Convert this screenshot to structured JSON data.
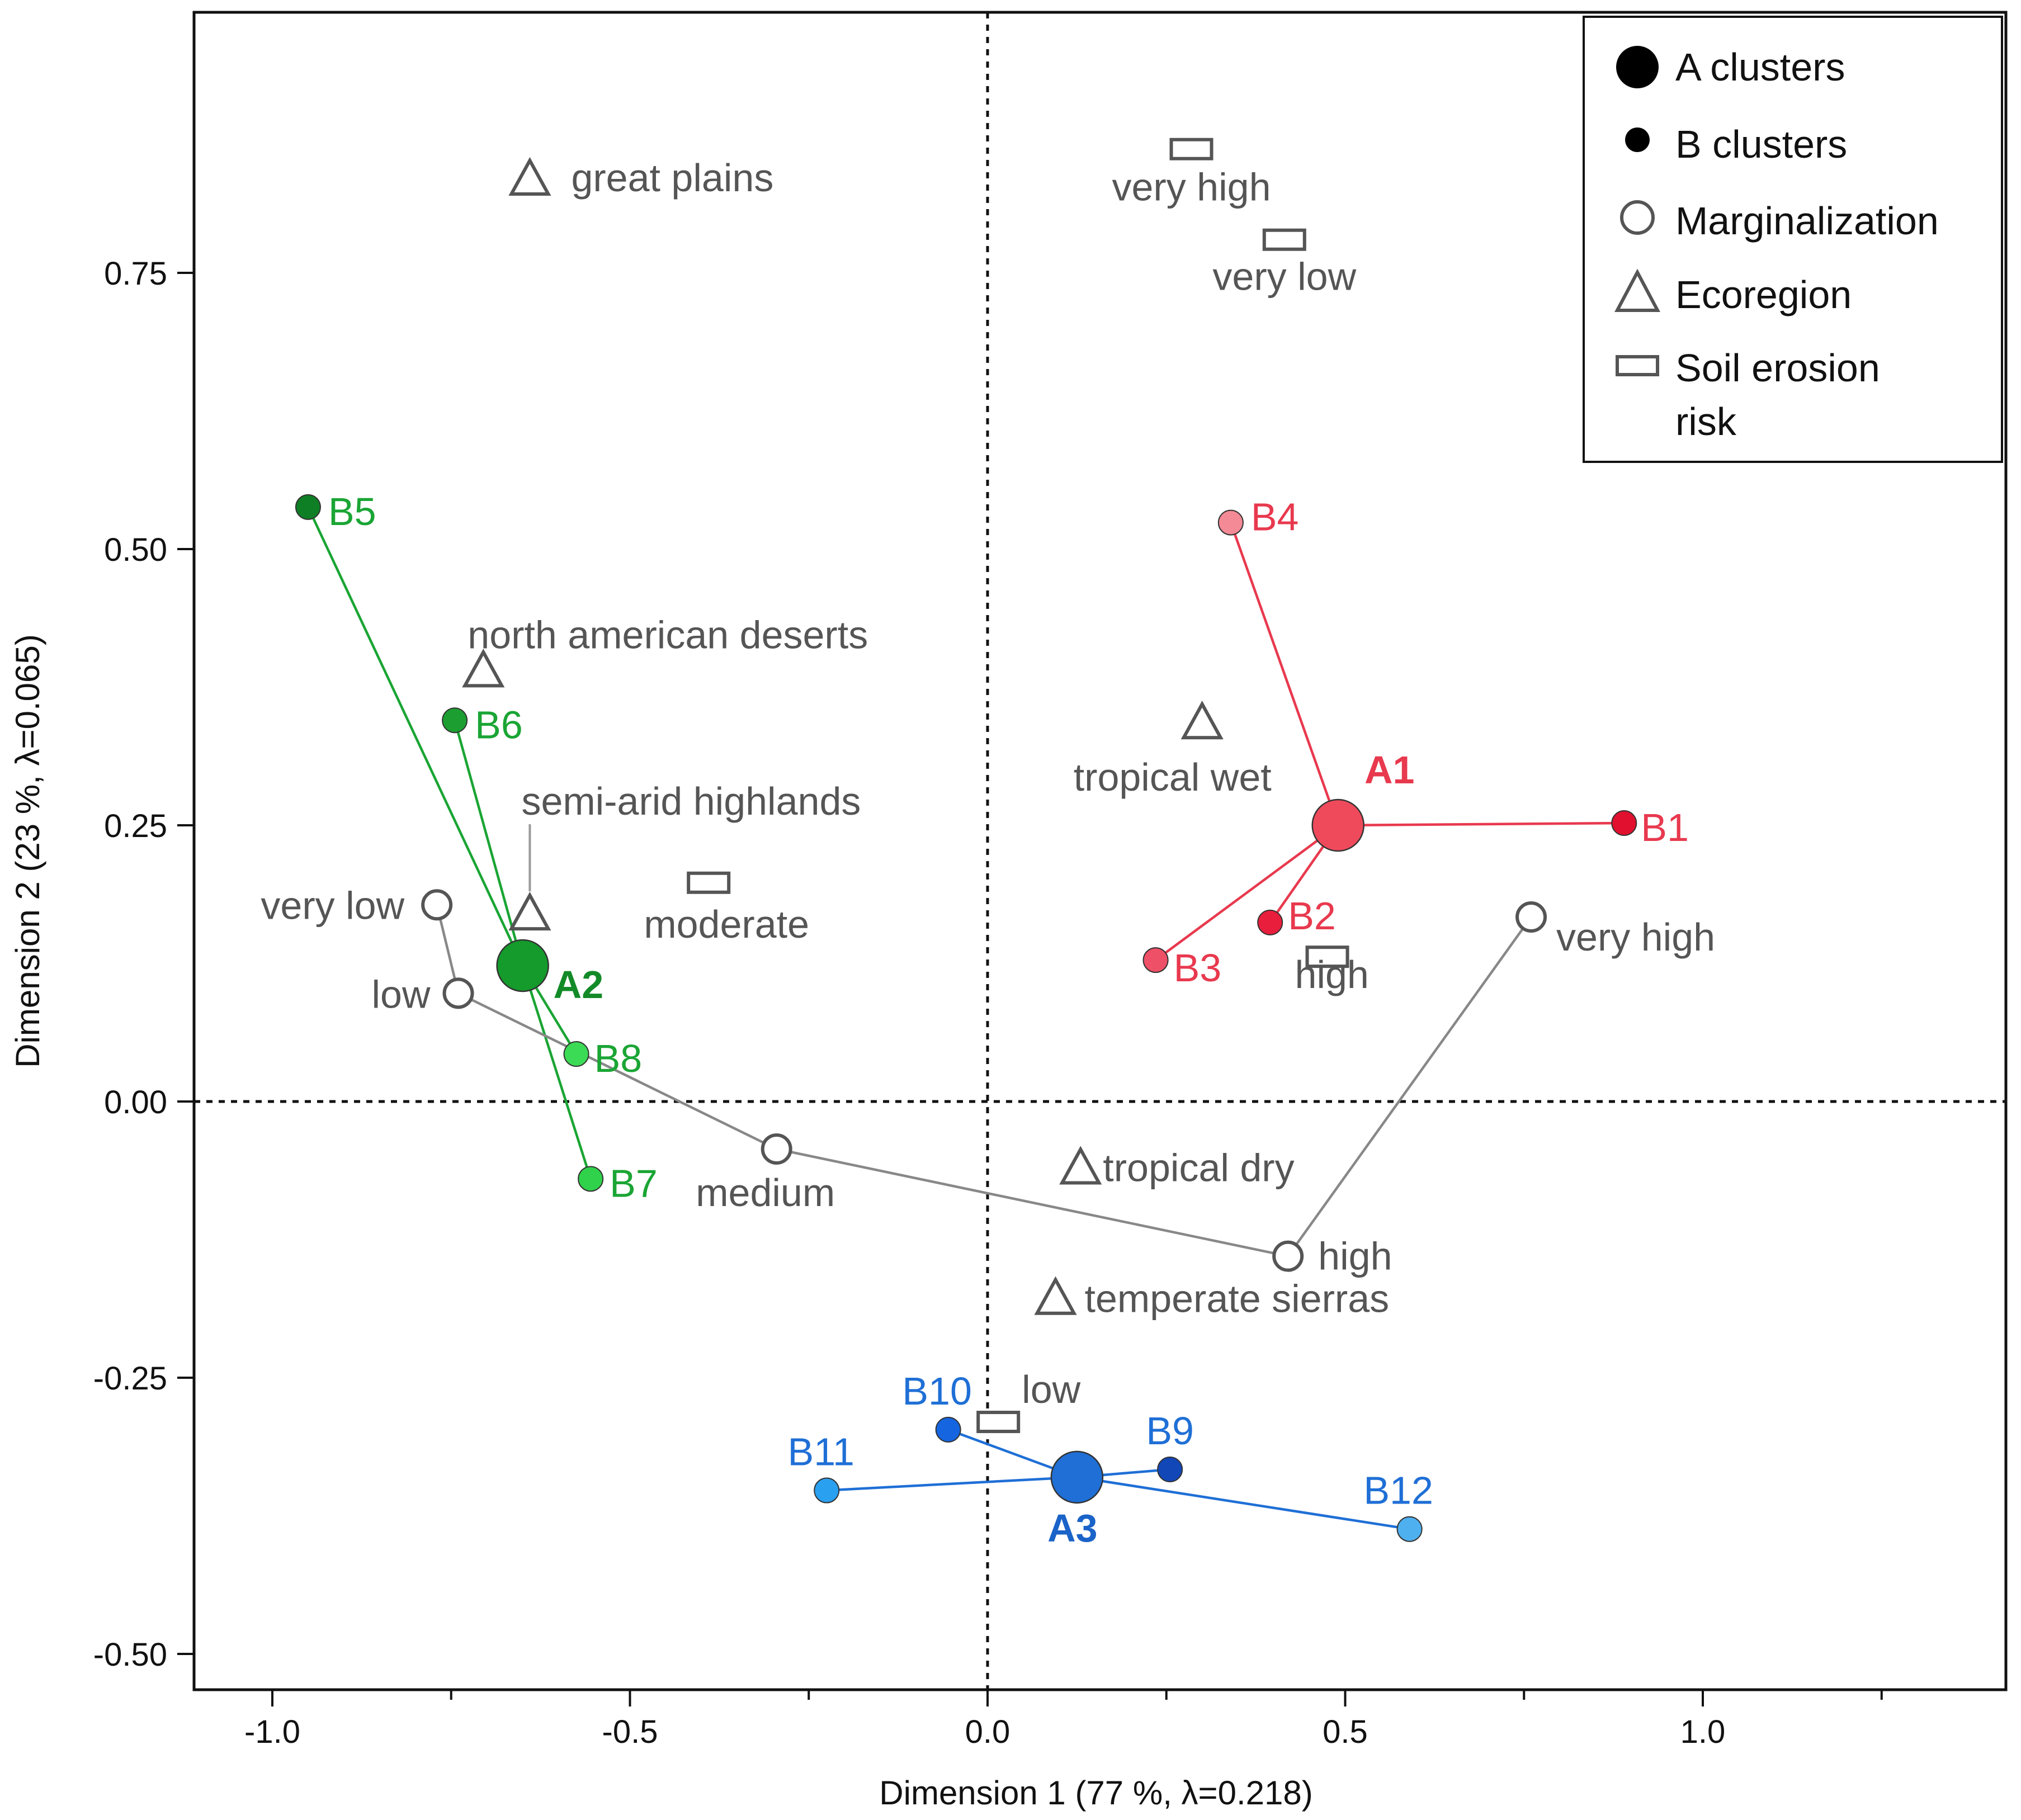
{
  "chart_data": {
    "type": "scatter",
    "title": "",
    "xlabel": "Dimension 1  (77 %, λ=0.218)",
    "ylabel": "Dimension 2  (23 %, λ=0.065)",
    "xlim": [
      -1.1,
      1.4
    ],
    "ylim": [
      -0.53,
      1.0
    ],
    "x_ticks": [
      -1.0,
      -0.5,
      0.0,
      0.5,
      1.0
    ],
    "x_tick_labels": [
      "-1.0",
      "-0.5",
      "0.0",
      "0.5",
      "1.0"
    ],
    "y_ticks": [
      -0.5,
      -0.25,
      0.0,
      0.25,
      0.5,
      0.75
    ],
    "y_tick_labels": [
      "-0.50",
      "-0.25",
      "0.00",
      "0.25",
      "0.50",
      "0.75"
    ],
    "grid": false,
    "reference_lines": "dashed lines at x = 0 and y = 0",
    "legend_position": "top-right",
    "legend": [
      {
        "label": "A clusters",
        "marker": "large-filled-circle"
      },
      {
        "label": "B clusters",
        "marker": "small-filled-circle"
      },
      {
        "label": "Marginalization",
        "marker": "open-circle"
      },
      {
        "label": "Ecoregion",
        "marker": "open-triangle"
      },
      {
        "label": "Soil erosion risk",
        "marker": "open-rectangle"
      }
    ],
    "colors": {
      "group_A1": "#e8394e",
      "group_A2": "#1aa534",
      "group_A3": "#1f6fd6",
      "marginalization_line": "#888888",
      "variable_marker": "#555555",
      "variable_text": "#555555"
    },
    "a_clusters": [
      {
        "label": "A1",
        "x": 0.49,
        "y": 0.25,
        "color": "#ef4a5c",
        "text_color": "#e8394e"
      },
      {
        "label": "A2",
        "x": -0.65,
        "y": 0.123,
        "color": "#159a2c",
        "text_color": "#138a28"
      },
      {
        "label": "A3",
        "x": 0.125,
        "y": -0.34,
        "color": "#1f6fd6",
        "text_color": "#1a63c8"
      }
    ],
    "b_clusters": [
      {
        "label": "B1",
        "x": 0.89,
        "y": 0.252,
        "parent": "A1",
        "color": "#e0102e",
        "text_color": "#e8394e"
      },
      {
        "label": "B2",
        "x": 0.395,
        "y": 0.162,
        "parent": "A1",
        "color": "#e81e3c",
        "text_color": "#e8394e"
      },
      {
        "label": "B3",
        "x": 0.235,
        "y": 0.128,
        "parent": "A1",
        "color": "#ee5067",
        "text_color": "#e8394e"
      },
      {
        "label": "B4",
        "x": 0.34,
        "y": 0.524,
        "parent": "A1",
        "color": "#f48a96",
        "text_color": "#e8394e"
      },
      {
        "label": "B5",
        "x": -0.95,
        "y": 0.538,
        "parent": "A2",
        "color": "#0f7f25",
        "text_color": "#1aa534"
      },
      {
        "label": "B6",
        "x": -0.745,
        "y": 0.345,
        "parent": "A2",
        "color": "#1c9e31",
        "text_color": "#1aa534"
      },
      {
        "label": "B7",
        "x": -0.555,
        "y": -0.07,
        "parent": "A2",
        "color": "#2fd24a",
        "text_color": "#1aa534"
      },
      {
        "label": "B8",
        "x": -0.575,
        "y": 0.043,
        "parent": "A2",
        "color": "#3cdb55",
        "text_color": "#1aa534"
      },
      {
        "label": "B9",
        "x": 0.255,
        "y": -0.333,
        "parent": "A3",
        "color": "#1247b8",
        "text_color": "#1f6fd6"
      },
      {
        "label": "B10",
        "x": -0.055,
        "y": -0.297,
        "parent": "A3",
        "color": "#1565e0",
        "text_color": "#1f6fd6"
      },
      {
        "label": "B11",
        "x": -0.225,
        "y": -0.352,
        "parent": "A3",
        "color": "#2aa0f0",
        "text_color": "#1f6fd6"
      },
      {
        "label": "B12",
        "x": 0.59,
        "y": -0.387,
        "parent": "A3",
        "color": "#4fb0f0",
        "text_color": "#1f6fd6"
      }
    ],
    "marginalization": [
      {
        "label": "very low",
        "x": -0.77,
        "y": 0.178
      },
      {
        "label": "low",
        "x": -0.74,
        "y": 0.098
      },
      {
        "label": "medium",
        "x": -0.295,
        "y": -0.043
      },
      {
        "label": "high",
        "x": 0.42,
        "y": -0.14
      },
      {
        "label": "very high",
        "x": 0.76,
        "y": 0.167
      }
    ],
    "ecoregion": [
      {
        "label": "great plains",
        "x": -0.64,
        "y": 0.835
      },
      {
        "label": "north american deserts",
        "x": -0.705,
        "y": 0.39
      },
      {
        "label": "semi-arid highlands",
        "x": -0.64,
        "y": 0.17
      },
      {
        "label": "tropical wet",
        "x": 0.3,
        "y": 0.343
      },
      {
        "label": "tropical dry",
        "x": 0.13,
        "y": -0.06
      },
      {
        "label": "temperate sierras",
        "x": 0.095,
        "y": -0.178
      }
    ],
    "soil_erosion_risk": [
      {
        "label": "very high",
        "x": 0.285,
        "y": 0.862
      },
      {
        "label": "very low",
        "x": 0.415,
        "y": 0.78
      },
      {
        "label": "moderate",
        "x": -0.39,
        "y": 0.198
      },
      {
        "label": "high",
        "x": 0.475,
        "y": 0.131
      },
      {
        "label": "low",
        "x": 0.015,
        "y": -0.29
      }
    ]
  }
}
